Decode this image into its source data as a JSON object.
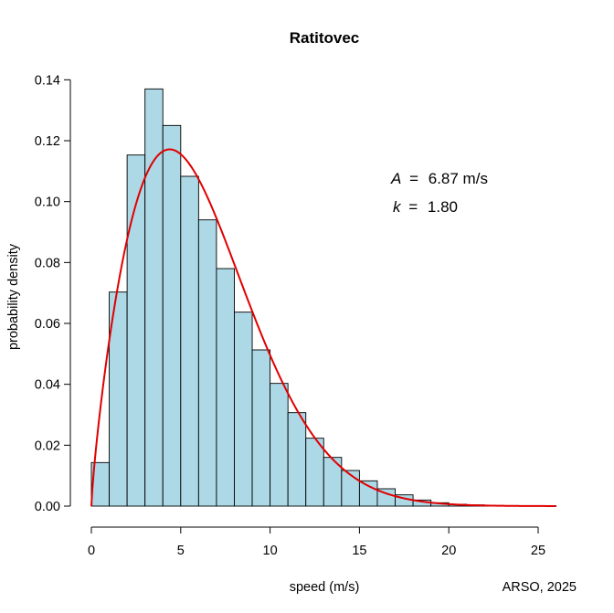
{
  "chart_data": {
    "type": "bar",
    "title": "Ratitovec",
    "xlabel": "speed (m/s)",
    "ylabel": "probability density",
    "credit": "ARSO, 2025",
    "bin_width": 1,
    "bins_start": [
      0,
      1,
      2,
      3,
      4,
      5,
      6,
      7,
      8,
      9,
      10,
      11,
      12,
      13,
      14,
      15,
      16,
      17,
      18,
      19,
      20,
      21,
      22,
      23,
      24,
      25
    ],
    "values": [
      0.0143,
      0.0703,
      0.1153,
      0.137,
      0.125,
      0.1083,
      0.094,
      0.078,
      0.0637,
      0.0513,
      0.0403,
      0.0307,
      0.0223,
      0.016,
      0.0117,
      0.0083,
      0.0057,
      0.0037,
      0.002,
      0.0011,
      0.0006,
      0.0004,
      0.0002,
      0.0001,
      0.0001,
      0.0001
    ],
    "xlim": [
      0,
      26
    ],
    "ylim": [
      0,
      0.14
    ],
    "xticks": [
      0,
      5,
      10,
      15,
      20,
      25
    ],
    "yticks": [
      0,
      0.02,
      0.04,
      0.06,
      0.08,
      0.1,
      0.12,
      0.14
    ],
    "xtick_labels": [
      "0",
      "5",
      "10",
      "15",
      "20",
      "25"
    ],
    "ytick_labels": [
      "0.00",
      "0.02",
      "0.04",
      "0.06",
      "0.08",
      "0.10",
      "0.12",
      "0.14"
    ],
    "fit": {
      "type": "weibull",
      "A": 6.87,
      "k": 1.8
    },
    "annotations": [
      {
        "symbol": "A",
        "eq": "=",
        "value": "6.87 m/s"
      },
      {
        "symbol": "k",
        "eq": "=",
        "value": "1.80"
      }
    ],
    "colors": {
      "bar_fill": "#add8e6",
      "bar_stroke": "#000000",
      "curve": "#e00000"
    }
  }
}
